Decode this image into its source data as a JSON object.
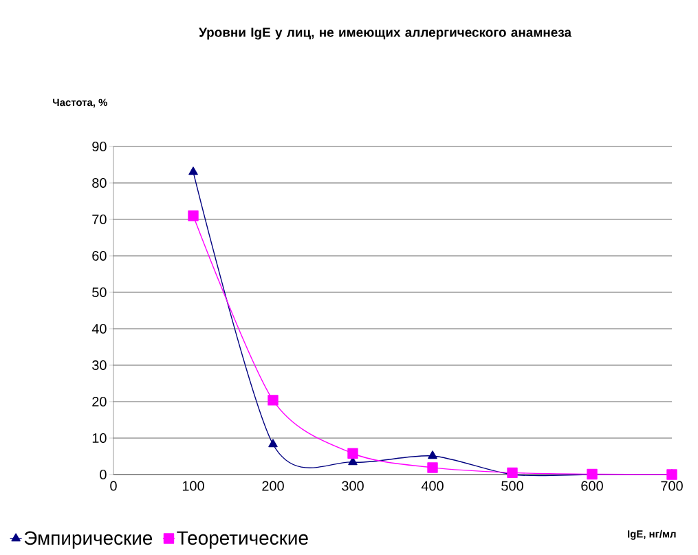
{
  "chart_data": {
    "type": "line",
    "title": "Уровни IgE у лиц, не имеющих аллергического анамнеза",
    "xlabel": "IgE, нг/мл",
    "ylabel": "Частота, %",
    "x": [
      100,
      200,
      300,
      400,
      500,
      600,
      700
    ],
    "series": [
      {
        "name": "Эмпирические",
        "color": "#000080",
        "marker": "triangle",
        "values": [
          83,
          8.3,
          3.4,
          5.1,
          0,
          0,
          0
        ]
      },
      {
        "name": "Теоретические",
        "color": "#ff00ff",
        "marker": "square",
        "values": [
          71,
          20.4,
          5.8,
          1.9,
          0.5,
          0.1,
          0
        ]
      }
    ],
    "xlim": [
      0,
      700
    ],
    "ylim": [
      0,
      90
    ],
    "xticks": [
      0,
      100,
      200,
      300,
      400,
      500,
      600,
      700
    ],
    "yticks": [
      0,
      10,
      20,
      30,
      40,
      50,
      60,
      70,
      80,
      90
    ],
    "grid": "y",
    "legend": "bottom left"
  }
}
